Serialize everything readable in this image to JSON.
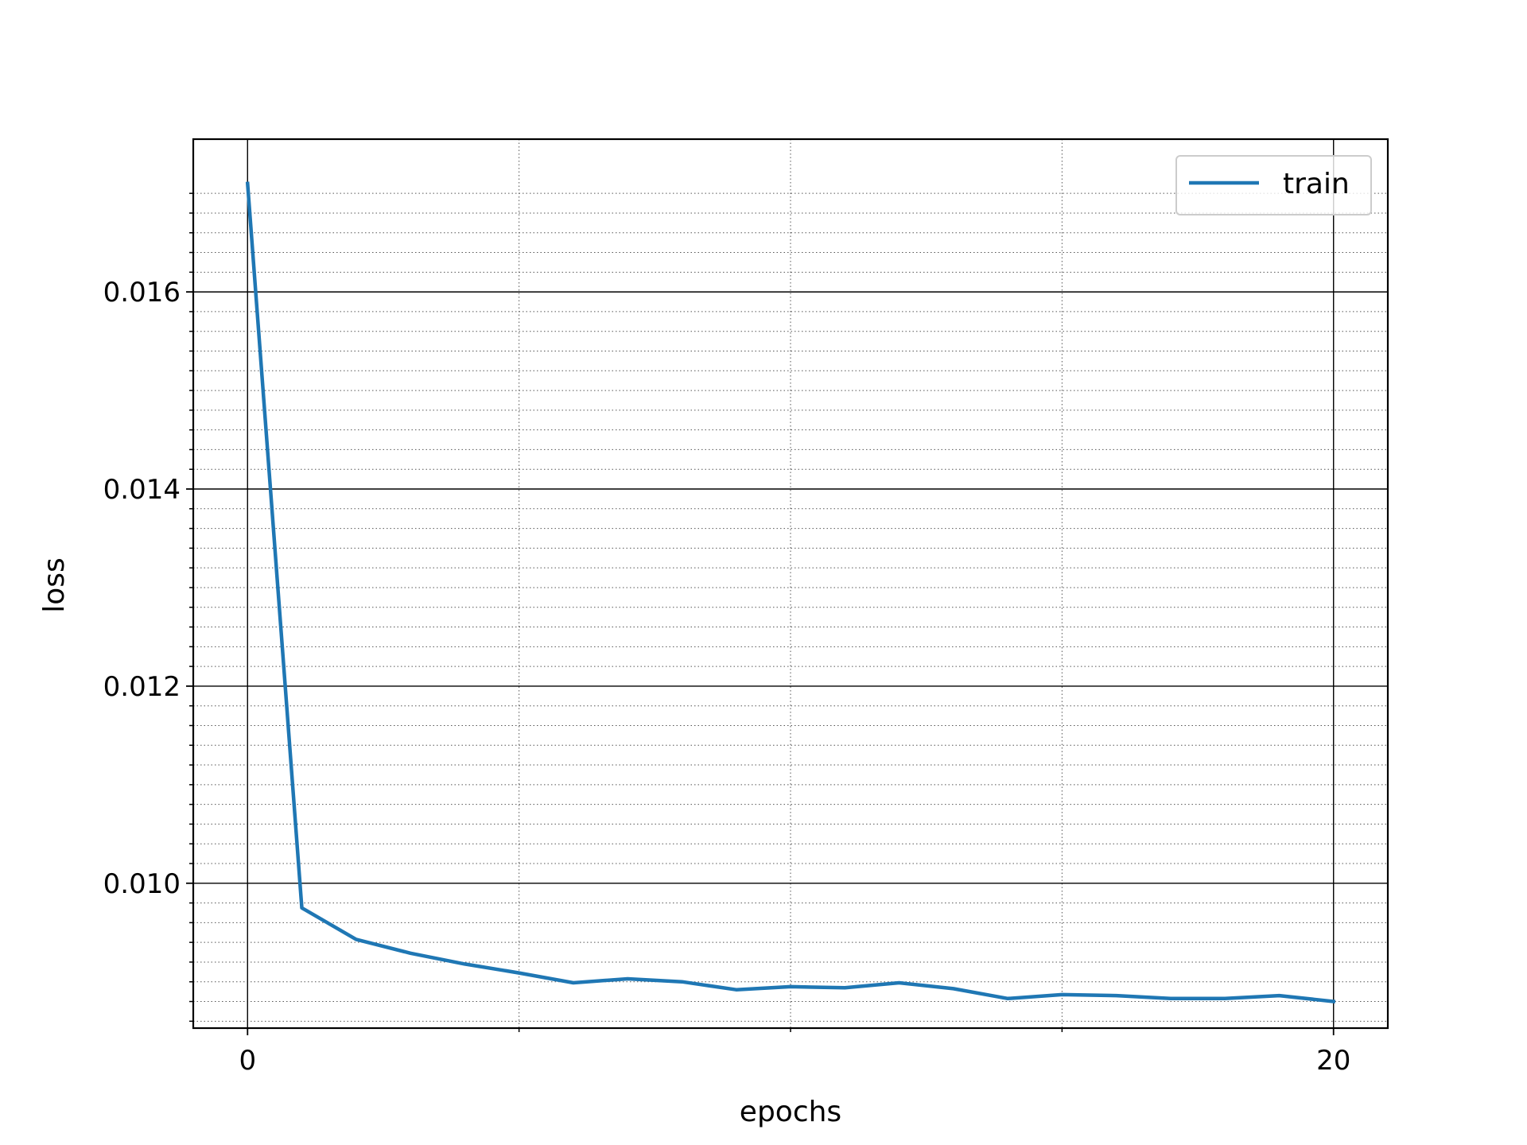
{
  "chart_data": {
    "type": "line",
    "xlabel": "epochs",
    "ylabel": "loss",
    "xlim": [
      -1,
      21
    ],
    "ylim": [
      0.00853,
      0.01755
    ],
    "x_major_ticks": [
      0,
      20
    ],
    "x_major_tick_labels": [
      "0",
      "20"
    ],
    "x_minor_ticks": [
      5,
      10,
      15
    ],
    "y_major_ticks": [
      0.01,
      0.012,
      0.014,
      0.016
    ],
    "y_major_tick_labels": [
      "0.010",
      "0.012",
      "0.014",
      "0.016"
    ],
    "y_minor_ticks": [
      0.0086,
      0.0088,
      0.009,
      0.0092,
      0.0094,
      0.0096,
      0.0098,
      0.0102,
      0.0104,
      0.0106,
      0.0108,
      0.011,
      0.0112,
      0.0114,
      0.0116,
      0.0118,
      0.0122,
      0.0124,
      0.0126,
      0.0128,
      0.013,
      0.0132,
      0.0134,
      0.0136,
      0.0138,
      0.0142,
      0.0144,
      0.0146,
      0.0148,
      0.015,
      0.0152,
      0.0154,
      0.0156,
      0.0158,
      0.0162,
      0.0164,
      0.0166,
      0.0168,
      0.017
    ],
    "grid": {
      "major": "solid",
      "minor": "dotted"
    },
    "legend_position": "top-right",
    "series": [
      {
        "name": "train",
        "color": "#1f77b4",
        "x": [
          0,
          1,
          2,
          3,
          4,
          5,
          6,
          7,
          8,
          9,
          10,
          11,
          12,
          13,
          14,
          15,
          16,
          17,
          18,
          19,
          20
        ],
        "y": [
          0.0171,
          0.00975,
          0.00943,
          0.00929,
          0.00918,
          0.00909,
          0.00899,
          0.00903,
          0.009,
          0.00892,
          0.00895,
          0.00894,
          0.00899,
          0.00893,
          0.00883,
          0.00887,
          0.00886,
          0.00883,
          0.00883,
          0.00886,
          0.0088
        ]
      }
    ]
  }
}
